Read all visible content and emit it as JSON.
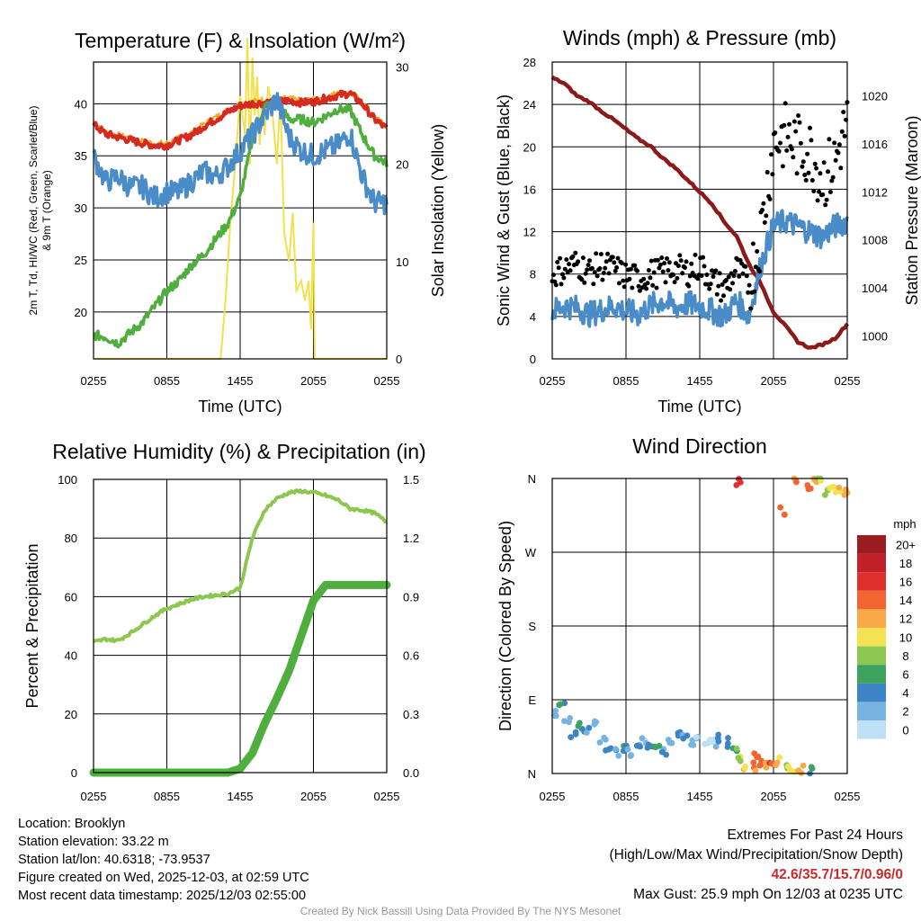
{
  "chart_data": [
    {
      "type": "line",
      "title": "Temperature (F) & Insolation (W/m²)",
      "xlabel": "Time (UTC)",
      "ylabel_line1": "2m T, Td, HI/WC (Red, Green, Scarlet/Blue)",
      "ylabel_line2": "& 9m T (Orange)",
      "y2label": "Solar Insolation (Yellow)",
      "xticks": [
        "0255",
        "0855",
        "1455",
        "2055",
        "0255"
      ],
      "yticks": [
        20,
        25,
        30,
        35,
        40
      ],
      "y2ticks": [
        0,
        10,
        20,
        30
      ],
      "ylim": [
        15.5,
        44
      ],
      "y2lim": [
        0,
        30.5
      ],
      "x_hours": [
        0,
        1,
        2,
        3,
        4,
        5,
        6,
        7,
        8,
        9,
        10,
        11,
        12,
        13,
        14,
        15,
        16,
        17,
        18,
        19,
        20,
        21,
        22,
        23,
        24
      ],
      "series": [
        {
          "name": "2m T",
          "color": "#d42a20",
          "values": [
            38.0,
            37.1,
            36.8,
            36.5,
            36.2,
            36.0,
            36.0,
            36.5,
            37.0,
            37.8,
            38.5,
            39.2,
            39.8,
            40.0,
            40.1,
            40.2,
            40.3,
            40.1,
            40.2,
            40.5,
            40.8,
            41.0,
            40.0,
            38.5,
            37.6
          ]
        },
        {
          "name": "9m T",
          "color": "#f5a623",
          "values": [
            38.3,
            37.3,
            37.0,
            36.7,
            36.4,
            36.2,
            36.2,
            36.7,
            37.2,
            38.0,
            38.7,
            39.4,
            40.0,
            40.2,
            40.3,
            40.4,
            40.5,
            40.3,
            40.4,
            40.7,
            41.0,
            41.2,
            40.2,
            38.7,
            37.8
          ]
        },
        {
          "name": "Dewpoint",
          "color": "#4fae3e",
          "values": [
            17.8,
            17.6,
            17.0,
            18.0,
            19.0,
            20.5,
            22.0,
            23.0,
            24.5,
            25.5,
            27.0,
            28.5,
            31.0,
            36.5,
            39.8,
            40.0,
            38.5,
            38.5,
            38.2,
            38.8,
            39.5,
            39.4,
            37.0,
            35.0,
            34.3
          ]
        },
        {
          "name": "HI/WC",
          "color": "#4a8cc8",
          "values": [
            35.0,
            32.5,
            33.0,
            32.0,
            32.0,
            31.0,
            31.5,
            31.5,
            32.5,
            33.5,
            33.0,
            34.0,
            35.5,
            37.0,
            38.8,
            40.5,
            36.8,
            35.5,
            35.0,
            35.5,
            36.0,
            37.2,
            33.0,
            30.5,
            30.5
          ]
        }
      ],
      "insolation": {
        "name": "Solar Insolation",
        "color": "#f4e04c",
        "x_hours": [
          0,
          10.4,
          10.8,
          11.2,
          11.6,
          12.0,
          12.4,
          12.6,
          12.8,
          13.0,
          13.2,
          13.4,
          13.6,
          13.8,
          14.0,
          14.3,
          14.6,
          15.0,
          15.3,
          15.6,
          16.0,
          16.3,
          16.6,
          17.0,
          17.3,
          17.6,
          17.8,
          18.0,
          18.1,
          24
        ],
        "values": [
          0,
          0,
          6,
          14,
          20,
          27,
          23,
          33,
          20,
          31,
          25,
          29,
          22,
          27,
          23,
          28,
          26,
          20,
          27,
          13,
          10,
          15,
          7,
          8,
          6,
          8,
          3,
          14,
          0,
          0
        ]
      }
    },
    {
      "type": "line",
      "title": "Winds (mph) & Pressure (mb)",
      "xlabel": "Time (UTC)",
      "ylabel": "Sonic Wind & Gust (Blue, Black)",
      "y2label": "Station Pressure (Maroon)",
      "xticks": [
        "0255",
        "0855",
        "1455",
        "2055",
        "0255"
      ],
      "yticks": [
        0,
        4,
        8,
        12,
        16,
        20,
        24,
        28
      ],
      "y2ticks": [
        1000,
        1004,
        1008,
        1012,
        1016,
        1020
      ],
      "ylim": [
        0,
        28
      ],
      "y2lim": [
        998.1,
        1022.8
      ],
      "x_hours": [
        0,
        1,
        2,
        3,
        4,
        5,
        6,
        7,
        8,
        9,
        10,
        11,
        12,
        13,
        14,
        15,
        16,
        17,
        18,
        19,
        20,
        21,
        22,
        23,
        24
      ],
      "series": [
        {
          "name": "Sonic Wind",
          "color": "#4a8cc8",
          "values": [
            4.5,
            5.0,
            4.8,
            4.2,
            4.6,
            5.0,
            4.5,
            4.2,
            5.0,
            5.5,
            4.8,
            5.2,
            5.0,
            4.5,
            4.0,
            5.5,
            4.0,
            9.0,
            12.5,
            13.0,
            12.5,
            12.0,
            11.5,
            12.5,
            13.0
          ]
        },
        {
          "name": "Gust",
          "color": "#000000",
          "values": [
            8.0,
            8.5,
            9.0,
            8.2,
            8.8,
            8.5,
            7.8,
            7.5,
            8.0,
            8.2,
            8.5,
            8.2,
            8.8,
            7.5,
            6.5,
            8.5,
            7.0,
            12.0,
            20.5,
            21.0,
            20.0,
            19.5,
            17.0,
            18.5,
            22.5
          ]
        },
        {
          "name": "Station Pressure",
          "color": "#8b1a1a",
          "values": [
            1021.5,
            1021.0,
            1020.0,
            1019.5,
            1018.7,
            1018.0,
            1017.2,
            1016.4,
            1015.8,
            1014.8,
            1014.0,
            1013.0,
            1012.0,
            1011.0,
            1009.5,
            1008.3,
            1006.0,
            1004.3,
            1002.0,
            1000.8,
            999.5,
            999.0,
            999.3,
            999.8,
            1001.0
          ]
        }
      ]
    },
    {
      "type": "line",
      "title": "Relative Humidity (%) & Precipitation (in)",
      "ylabel": "Percent & Precipitation",
      "xticks": [
        "0255",
        "0855",
        "1455",
        "2055",
        "0255"
      ],
      "yticks": [
        0,
        20,
        40,
        60,
        80,
        100
      ],
      "y2ticks": [
        "0.0",
        "0.3",
        "0.6",
        "0.9",
        "1.2",
        "1.5"
      ],
      "ylim": [
        0,
        100
      ],
      "y2lim": [
        0,
        1.5
      ],
      "x_hours": [
        0,
        1,
        2,
        3,
        4,
        5,
        6,
        7,
        8,
        9,
        10,
        11,
        12,
        13,
        14,
        15,
        16,
        17,
        18,
        19,
        20,
        21,
        22,
        23,
        24
      ],
      "series": [
        {
          "name": "Relative Humidity",
          "color": "#8cc850",
          "values": [
            44.5,
            45.5,
            45.0,
            47.5,
            50.5,
            53.5,
            56.0,
            57.5,
            59.0,
            60.0,
            60.5,
            61.0,
            63.0,
            80.0,
            89.5,
            93.5,
            95.5,
            96.0,
            95.5,
            94.5,
            93.0,
            90.0,
            89.5,
            88.5,
            85.5
          ]
        },
        {
          "name": "Precipitation",
          "color": "#4fae3e",
          "values": [
            0,
            0,
            0,
            0,
            0,
            0,
            0,
            0,
            0,
            0,
            0,
            0,
            0.02,
            0.1,
            0.25,
            0.38,
            0.52,
            0.7,
            0.88,
            0.96,
            0.96,
            0.96,
            0.96,
            0.96,
            0.96
          ]
        }
      ]
    },
    {
      "type": "scatter",
      "title": "Wind Direction",
      "ylabel": "Direction (Colored By Speed)",
      "xticks": [
        "0255",
        "0855",
        "1455",
        "2055",
        "0255"
      ],
      "yticks": [
        "N",
        "E",
        "S",
        "W",
        "N"
      ],
      "ylim": [
        0,
        360
      ],
      "colorbar_unit": "mph",
      "colorbar_labels": [
        "20+",
        "18",
        "16",
        "14",
        "12",
        "10",
        "8",
        "6",
        "4",
        "2",
        "0"
      ],
      "colorbar_colors": [
        "#9b1c20",
        "#c0202a",
        "#e0302e",
        "#f26530",
        "#f9a948",
        "#f3e353",
        "#8cc850",
        "#3da35e",
        "#3d84c4",
        "#78b4e2",
        "#bfe0f5"
      ],
      "x_hours": [
        0.3,
        0.8,
        1.2,
        1.7,
        2.3,
        2.8,
        3.5,
        4.1,
        4.6,
        5.2,
        5.8,
        6.3,
        6.9,
        7.4,
        7.9,
        8.5,
        9.1,
        9.6,
        10.2,
        10.8,
        11.4,
        11.9,
        12.6,
        13.1,
        13.5,
        14.2,
        14.8,
        15.2,
        15.8,
        16.3,
        16.9,
        17.4,
        17.8,
        18.3,
        19.0,
        19.5,
        20.2,
        20.8,
        21.3,
        21.8,
        22.3,
        22.8,
        23.3,
        23.8,
        15.1,
        16.6,
        18.7,
        19.9,
        21.0
      ],
      "directions": [
        76,
        80,
        62,
        50,
        58,
        55,
        62,
        41,
        34,
        25,
        30,
        26,
        35,
        38,
        30,
        32,
        28,
        40,
        48,
        42,
        35,
        45,
        40,
        36,
        42,
        38,
        30,
        18,
        10,
        8,
        15,
        12,
        8,
        14,
        10,
        6,
        5,
        352,
        358,
        356,
        345,
        348,
        344,
        345,
        357,
        20,
        320,
        358,
        2
      ],
      "speeds": [
        4,
        6,
        3,
        5,
        6,
        4,
        2,
        3,
        5,
        4,
        6,
        3,
        4,
        2,
        5,
        6,
        4,
        3,
        5,
        4,
        3,
        2,
        1,
        2,
        4,
        5,
        8,
        10,
        12,
        14,
        15,
        13,
        16,
        12,
        10,
        11,
        13,
        14,
        12,
        10,
        9,
        11,
        12,
        13,
        17,
        16,
        15,
        14,
        6
      ]
    }
  ],
  "station": {
    "location": "Location: Brooklyn",
    "elevation": "Station elevation: 33.22 m",
    "latlon": "Station lat/lon: 40.6318; -73.9537",
    "created": "Figure created on Wed, 2025-12-03, at 02:59 UTC",
    "recent": "Most recent data timestamp: 2025/12/03 02:55:00"
  },
  "extremes": {
    "title": "Extremes For Past 24 Hours",
    "legend": "(High/Low/Max Wind/Precipitation/Snow Depth)",
    "values": "42.6/35.7/15.7/0.96/0",
    "gust": "Max Gust: 25.9 mph On 12/03 at 0235 UTC",
    "color": "#cc2a2a"
  },
  "credit": "Created By Nick Bassill Using Data Provided By The NYS Mesonet"
}
